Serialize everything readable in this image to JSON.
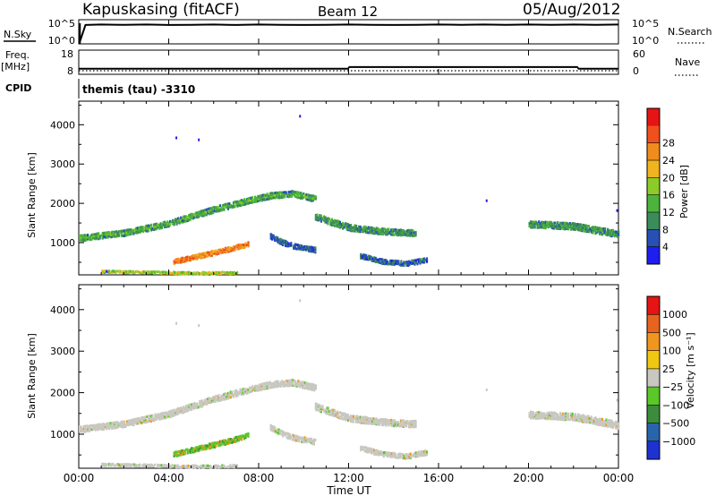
{
  "header": {
    "station": "Kapuskasing (fitACF)",
    "beam": "Beam 12",
    "date": "05/Aug/2012"
  },
  "chart_data": [
    {
      "type": "line",
      "id": "noise",
      "left_label": "N.Sky",
      "right_label": "N.Search",
      "left_ticks": [
        "10^5",
        "10^0"
      ],
      "right_ticks": [
        "10^5",
        "10^0"
      ],
      "x_hours": [
        0.05,
        0.3,
        1,
        2,
        3,
        4,
        5,
        6,
        7,
        8,
        9,
        10,
        11,
        12,
        13,
        14,
        15,
        16,
        17,
        18,
        19,
        20,
        21,
        22,
        23,
        24
      ],
      "level": [
        0.1,
        0.78,
        0.8,
        0.79,
        0.8,
        0.78,
        0.79,
        0.8,
        0.78,
        0.8,
        0.79,
        0.78,
        0.79,
        0.8,
        0.79,
        0.78,
        0.79,
        0.8,
        0.79,
        0.8,
        0.79,
        0.8,
        0.79,
        0.8,
        0.79,
        0.8
      ]
    },
    {
      "type": "line",
      "id": "frequency",
      "left_label": "Freq.",
      "left_unit": "[MHz]",
      "right_label": "Nave",
      "left_ticks": [
        "18",
        "8"
      ],
      "right_ticks": [
        "60",
        "0"
      ],
      "freq_segments": [
        {
          "from_hour": 0,
          "to_hour": 12,
          "value_mhz": 10.3
        },
        {
          "from_hour": 12,
          "to_hour": 22.2,
          "value_mhz": 11.0
        },
        {
          "from_hour": 22.2,
          "to_hour": 24,
          "value_mhz": 10.3
        }
      ],
      "cpid_label": "CPID",
      "cpid_text": "themis (tau) -3310"
    },
    {
      "type": "heatmap",
      "id": "power",
      "ylabel": "Slant Range [km]",
      "yticks": [
        "1000",
        "2000",
        "3000",
        "4000"
      ],
      "ylim_km": [
        180,
        4600
      ],
      "colorbar_label": "Power [dB]",
      "colorbar_ticks": [
        "4",
        "8",
        "12",
        "16",
        "20",
        "24",
        "28"
      ],
      "colors": [
        "#1e1ef0",
        "#2850b4",
        "#3c8c5a",
        "#4cb43c",
        "#8ccc28",
        "#f0b41e",
        "#f08c1e",
        "#f0501e",
        "#e61414"
      ],
      "bands": [
        {
          "hours": [
            0,
            2,
            4,
            6,
            7.5,
            8.5,
            9.5,
            10.5
          ],
          "center_km": [
            1150,
            1280,
            1520,
            1880,
            2100,
            2230,
            2280,
            2150
          ],
          "width_km": 150,
          "level": 2
        },
        {
          "hours": [
            4.2,
            5,
            6,
            7,
            7.5
          ],
          "center_km": [
            550,
            650,
            780,
            920,
            1000
          ],
          "width_km": 120,
          "level": 6
        },
        {
          "hours": [
            10.5,
            11,
            12,
            13,
            14,
            15
          ],
          "center_km": [
            1700,
            1600,
            1420,
            1350,
            1300,
            1280
          ],
          "width_km": 160,
          "level": 2
        },
        {
          "hours": [
            20,
            21,
            22,
            23,
            24
          ],
          "center_km": [
            1500,
            1480,
            1450,
            1350,
            1250
          ],
          "width_km": 170,
          "level": 2
        },
        {
          "hours": [
            8.5,
            9,
            9.5,
            10,
            10.5
          ],
          "center_km": [
            1200,
            1050,
            950,
            900,
            850
          ],
          "width_km": 130,
          "level": 1
        },
        {
          "hours": [
            12.5,
            13.5,
            14.5,
            15.5
          ],
          "center_km": [
            700,
            550,
            500,
            600
          ],
          "width_km": 120,
          "level": 1
        },
        {
          "hours": [
            1,
            3,
            5,
            7
          ],
          "center_km": [
            300,
            280,
            260,
            270
          ],
          "width_km": 60,
          "level": 4
        }
      ]
    },
    {
      "type": "heatmap",
      "id": "velocity",
      "ylabel": "Slant Range [km]",
      "yticks": [
        "1000",
        "2000",
        "3000",
        "4000"
      ],
      "ylim_km": [
        180,
        4600
      ],
      "colorbar_label": "Velocity [m s⁻¹]",
      "colorbar_ticks": [
        "1000",
        "500",
        "100",
        "25",
        "−25",
        "−100",
        "−500",
        "−1000"
      ],
      "colors": [
        "#1e32d2",
        "#2864aa",
        "#3c8c3c",
        "#5ac828",
        "#c8c8c0",
        "#f0c814",
        "#f0961e",
        "#e6641e",
        "#e61414"
      ],
      "xticks": [
        "00:00",
        "04:00",
        "08:00",
        "12:00",
        "16:00",
        "20:00",
        "00:00"
      ],
      "xlabel": "Time UT"
    }
  ]
}
